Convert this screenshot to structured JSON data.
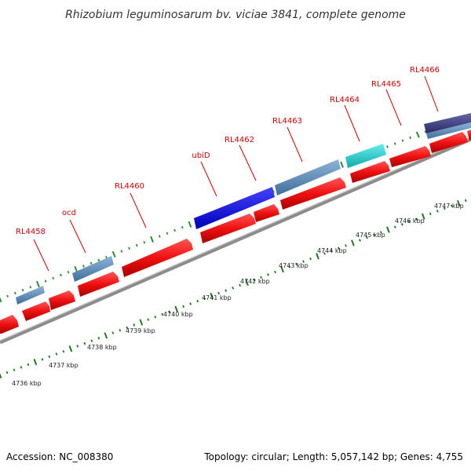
{
  "title": "Rhizobium leguminosarum bv. viciae 3841, complete genome",
  "footer": {
    "accession": "Accession: NC_008380",
    "summary": "Topology: circular; Length: 5,057,142 bp; Genes: 4,755"
  },
  "colors": {
    "backbone": "#8c8c8c",
    "cds": "#ee1111",
    "tick_major": "#1f7a1f",
    "tick_minor": "#2e8b2e",
    "label_red": "#cc0000",
    "leader": "#cc0000"
  },
  "scale": {
    "labels": [
      "4736 kbp",
      "4737 kbp",
      "4738 kbp",
      "4739 kbp",
      "4740 kbp",
      "4741 kbp",
      "4742 kbp",
      "4743 kbp",
      "4744 kbp",
      "4745 kbp",
      "4746 kbp",
      "4747 kbp"
    ]
  },
  "gene_labels": [
    "RL4458",
    "ocd",
    "RL4460",
    "ubiD",
    "RL4462",
    "RL4463",
    "RL4464",
    "RL4465",
    "RL4466"
  ]
}
